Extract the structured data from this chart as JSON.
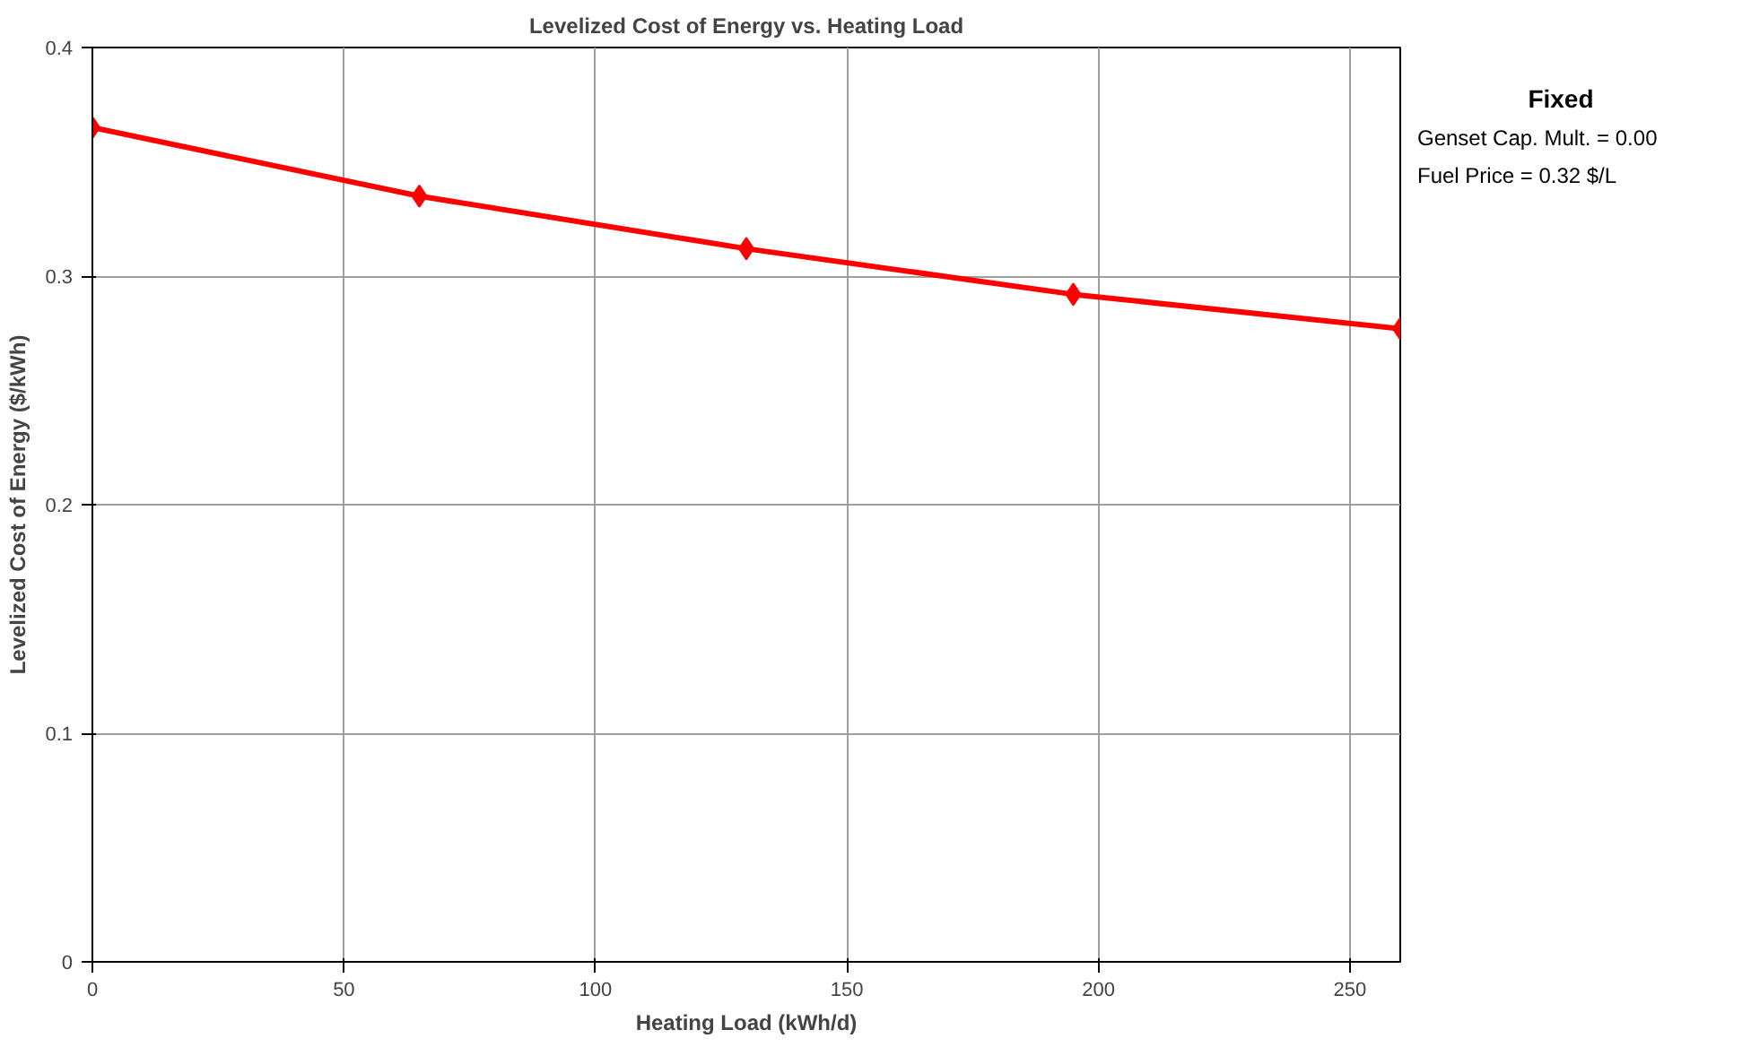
{
  "chart_data": {
    "type": "line",
    "title": "Levelized Cost of Energy vs. Heating Load",
    "xlabel": "Heating Load (kWh/d)",
    "ylabel": "Levelized Cost of Energy ($/kWh)",
    "x": [
      0,
      65,
      130,
      195,
      260
    ],
    "series": [
      {
        "color": "#ff0000",
        "values": [
          0.365,
          0.335,
          0.312,
          0.292,
          0.277
        ]
      }
    ],
    "xlim": [
      0,
      260
    ],
    "xticks": [
      0,
      50,
      100,
      150,
      200,
      250
    ],
    "ylim": [
      0,
      0.4
    ],
    "yticks": [
      0,
      0.1,
      0.2,
      0.3,
      0.4
    ],
    "grid": true,
    "marker": "diamond",
    "line_style": "solid",
    "annotations": [
      "Fixed",
      "Genset Cap. Mult. = 0.00",
      "Fuel Price = 0.32 $/L"
    ]
  }
}
